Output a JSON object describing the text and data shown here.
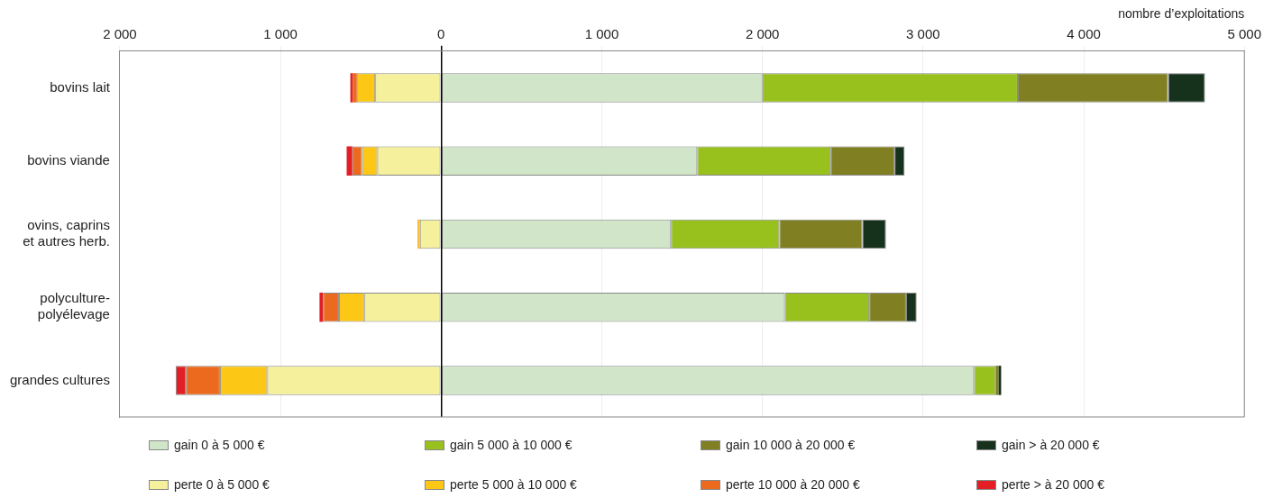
{
  "chart_data": {
    "type": "bar",
    "orientation": "horizontal",
    "stacked": true,
    "xlabel": "nombre d’exploitations",
    "categories": [
      "bovins lait",
      "bovins viande",
      "ovins, caprins\net autres herb.",
      "polyculture-\npolyélevage",
      "grandes cultures"
    ],
    "series": [
      {
        "name": "gain 0 à 5 000 €",
        "color": "#d1e5c8",
        "values": [
          2000,
          1594,
          1431,
          2139,
          3317
        ]
      },
      {
        "name": "gain 5 000 à 10 000 €",
        "color": "#98c11e",
        "values": [
          1590,
          830,
          674,
          526,
          135
        ]
      },
      {
        "name": "gain 10 000 à 20 000 €",
        "color": "#808023",
        "values": [
          935,
          398,
          517,
          229,
          17
        ]
      },
      {
        "name": "gain > à 20 000 €",
        "color": "#16321c",
        "values": [
          230,
          63,
          147,
          66,
          17
        ]
      },
      {
        "name": "perte 0 à 5 000 €",
        "color": "#f5f09c",
        "values": [
          -410,
          -397,
          -132,
          -480,
          -1082
        ]
      },
      {
        "name": "perte 5 000 à 10 000 €",
        "color": "#fdc815",
        "values": [
          -115,
          -95,
          -10,
          -156,
          -295
        ]
      },
      {
        "name": "perte 10 000 à 20 000 €",
        "color": "#eb6a1d",
        "values": [
          -25,
          -61,
          -3,
          -99,
          -212
        ]
      },
      {
        "name": "perte > à 20 000 €",
        "color": "#e31e24",
        "values": [
          -15,
          -35,
          0,
          -22,
          -63
        ]
      }
    ],
    "xlim": [
      -2000,
      5000
    ],
    "xticks": [
      {
        "value": -2000,
        "label": "2 000"
      },
      {
        "value": -1000,
        "label": "1 000"
      },
      0,
      {
        "value": 1000,
        "label": "1 000"
      },
      {
        "value": 2000,
        "label": "2 000"
      },
      {
        "value": 3000,
        "label": "3 000"
      },
      {
        "value": 4000,
        "label": "4 000"
      },
      {
        "value": 5000,
        "label": "5 000"
      }
    ],
    "grid": "x",
    "legend": "bottom"
  }
}
